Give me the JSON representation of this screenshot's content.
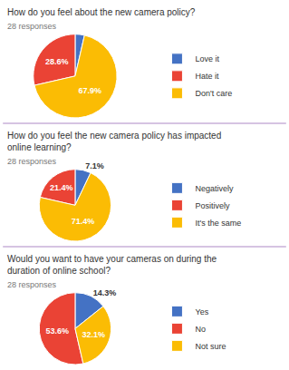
{
  "chart_data": [
    {
      "type": "pie",
      "title": "How do you feel about the new camera policy?",
      "subtitle": "28 responses",
      "categories": [
        "Love it",
        "Hate it",
        "Don't care"
      ],
      "values": [
        3.6,
        28.6,
        67.9
      ],
      "value_labels": [
        null,
        "28.6%",
        "67.9%"
      ],
      "colors": [
        "#4472c4",
        "#ea4335",
        "#fbbc04"
      ],
      "data_labels": true,
      "legend": "right"
    },
    {
      "type": "pie",
      "title": "How do you feel the new camera policy has impacted online learning?",
      "subtitle": "28 responses",
      "categories": [
        "Negatively",
        "Positively",
        "It's the same"
      ],
      "values": [
        7.1,
        21.4,
        71.4
      ],
      "value_labels": [
        "7.1%",
        "21.4%",
        "71.4%"
      ],
      "colors": [
        "#4472c4",
        "#ea4335",
        "#fbbc04"
      ],
      "data_labels": true,
      "legend": "right"
    },
    {
      "type": "pie",
      "title": "Would you want to have your cameras on during the duration of online school?",
      "subtitle": "28 responses",
      "categories": [
        "Yes",
        "No",
        "Not sure"
      ],
      "values": [
        14.3,
        53.6,
        32.1
      ],
      "value_labels": [
        "14.3%",
        "53.6%",
        "32.1%"
      ],
      "colors": [
        "#4472c4",
        "#ea4335",
        "#fbbc04"
      ],
      "data_labels": true,
      "legend": "right"
    }
  ]
}
